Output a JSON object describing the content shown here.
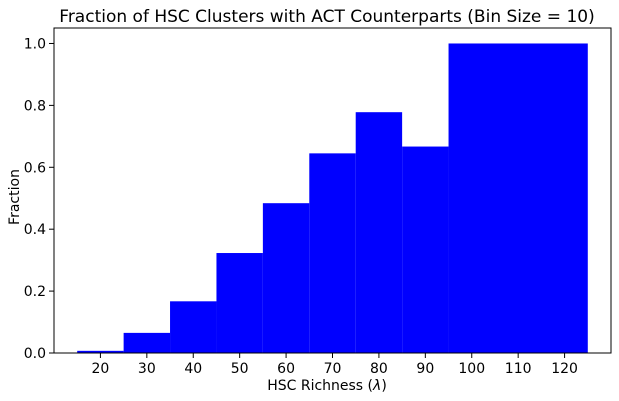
{
  "chart_data": {
    "type": "bar",
    "title": "Fraction of HSC Clusters with ACT Counterparts (Bin Size = 10)",
    "xlabel_text": "HSC Richness (",
    "xlabel_symbol": "λ",
    "xlabel_close": ")",
    "ylabel": "Fraction",
    "bin_edges": [
      15,
      25,
      35,
      45,
      55,
      65,
      75,
      85,
      95,
      125
    ],
    "values": [
      0.007,
      0.065,
      0.167,
      0.323,
      0.484,
      0.645,
      0.778,
      0.667,
      1.0
    ],
    "xlim": [
      10,
      130
    ],
    "ylim": [
      0,
      1.05
    ],
    "xticks": [
      20,
      30,
      40,
      50,
      60,
      70,
      80,
      90,
      100,
      110,
      120
    ],
    "yticks": [
      0.0,
      0.2,
      0.4,
      0.6,
      0.8,
      1.0
    ],
    "ytick_labels": [
      "0.0",
      "0.2",
      "0.4",
      "0.6",
      "0.8",
      "1.0"
    ],
    "bar_color": "#0000ff",
    "grid": false,
    "legend": "none"
  }
}
